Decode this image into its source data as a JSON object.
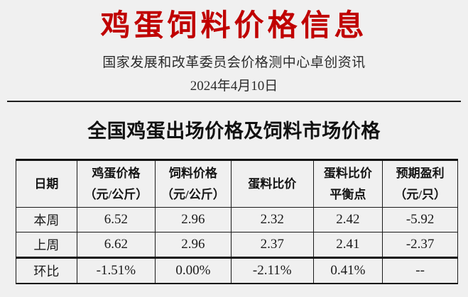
{
  "page": {
    "title": "鸡蛋饲料价格信息",
    "title_color": "#C00000",
    "subtitle": "国家发展和改革委员会价格测中心卓创资讯",
    "date": "2024年4月10日",
    "section_title": "全国鸡蛋出场价格及饲料市场价格",
    "background_color": "#F0F0F0",
    "text_color": "#1A1A1A"
  },
  "table": {
    "headers": [
      [
        "日期"
      ],
      [
        "鸡蛋价格",
        "（元/公斤）"
      ],
      [
        "饲料价格",
        "（元/公斤）"
      ],
      [
        "蛋料比价"
      ],
      [
        "蛋料比价",
        "平衡点"
      ],
      [
        "预期盈利",
        "（元/只）"
      ]
    ],
    "rows": [
      {
        "label": "本周",
        "values": [
          "6.52",
          "2.96",
          "2.32",
          "2.42",
          "-5.92"
        ]
      },
      {
        "label": "上周",
        "values": [
          "6.62",
          "2.96",
          "2.37",
          "2.41",
          "-2.37"
        ]
      },
      {
        "label": "环比",
        "values": [
          "-1.51%",
          "0.00%",
          "-2.11%",
          "0.41%",
          "--"
        ]
      }
    ]
  }
}
